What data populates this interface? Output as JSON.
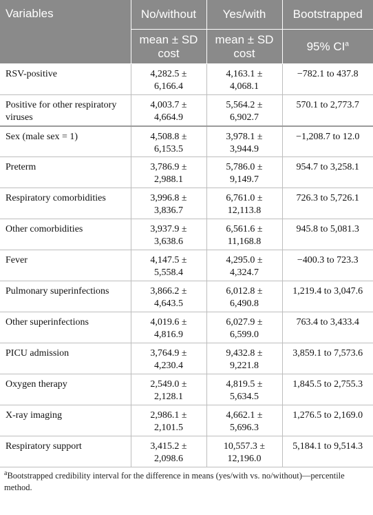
{
  "header": {
    "columns": [
      "Variables",
      "No/without",
      "Yes/with",
      "Bootstrapped"
    ],
    "subheader": [
      "mean ± SD cost",
      "mean ± SD cost",
      "95% CI"
    ],
    "ci_mark": "a"
  },
  "table": {
    "rows": [
      [
        "RSV-positive",
        "4,282.5 ± 6,166.4",
        "4,163.1 ± 4,068.1",
        "−782.1 to 437.8"
      ],
      [
        "Positive for other respiratory viruses",
        "4,003.7 ± 4,664.9",
        "5,564.2 ± 6,902.7",
        "570.1 to 2,773.7"
      ],
      [
        "Sex (male sex = 1)",
        "4,508.8 ± 6,153.5",
        "3,978.1 ± 3,944.9",
        "−1,208.7 to 12.0"
      ],
      [
        "Preterm",
        "3,786.9 ± 2,988.1",
        "5,786.0 ± 9,149.7",
        "954.7 to 3,258.1"
      ],
      [
        "Respiratory comorbidities",
        "3,996.8 ± 3,836.7",
        "6,761.0 ± 12,113.8",
        "726.3 to 5,726.1"
      ],
      [
        "Other comorbidities",
        "3,937.9 ± 3,638.6",
        "6,561.6 ± 11,168.8",
        "945.8 to 5,081.3"
      ],
      [
        "Fever",
        "4,147.5 ± 5,558.4",
        "4,295.0 ± 4,324.7",
        "−400.3 to 723.3"
      ],
      [
        "Pulmonary superinfections",
        "3,866.2 ± 4,643.5",
        "6,012.8 ± 6,490.8",
        "1,219.4 to 3,047.6"
      ],
      [
        "Other superinfections",
        "4,019.6 ± 4,816.9",
        "6,027.9 ± 6,599.0",
        "763.4 to 3,433.4"
      ],
      [
        "PICU admission",
        "3,764.9 ± 4,230.4",
        "9,432.8 ± 9,221.8",
        "3,859.1 to 7,573.6"
      ],
      [
        "Oxygen therapy",
        "2,549.0 ± 2,128.1",
        "4,819.5 ± 5,634.5",
        "1,845.5 to 2,755.3"
      ],
      [
        "X-ray imaging",
        "2,986.1 ± 2,101.5",
        "4,662.1 ± 5,696.3",
        "1,276.5 to 2,169.0"
      ],
      [
        "Respiratory support",
        "3,415.2 ± 2,098.6",
        "10,557.3 ± 12,196.0",
        "5,184.1 to 9,514.3"
      ]
    ]
  },
  "footnote": {
    "mark": "a",
    "text": "Bootstrapped credibility interval for the difference in means (yes/with vs. no/without)—percentile method."
  }
}
